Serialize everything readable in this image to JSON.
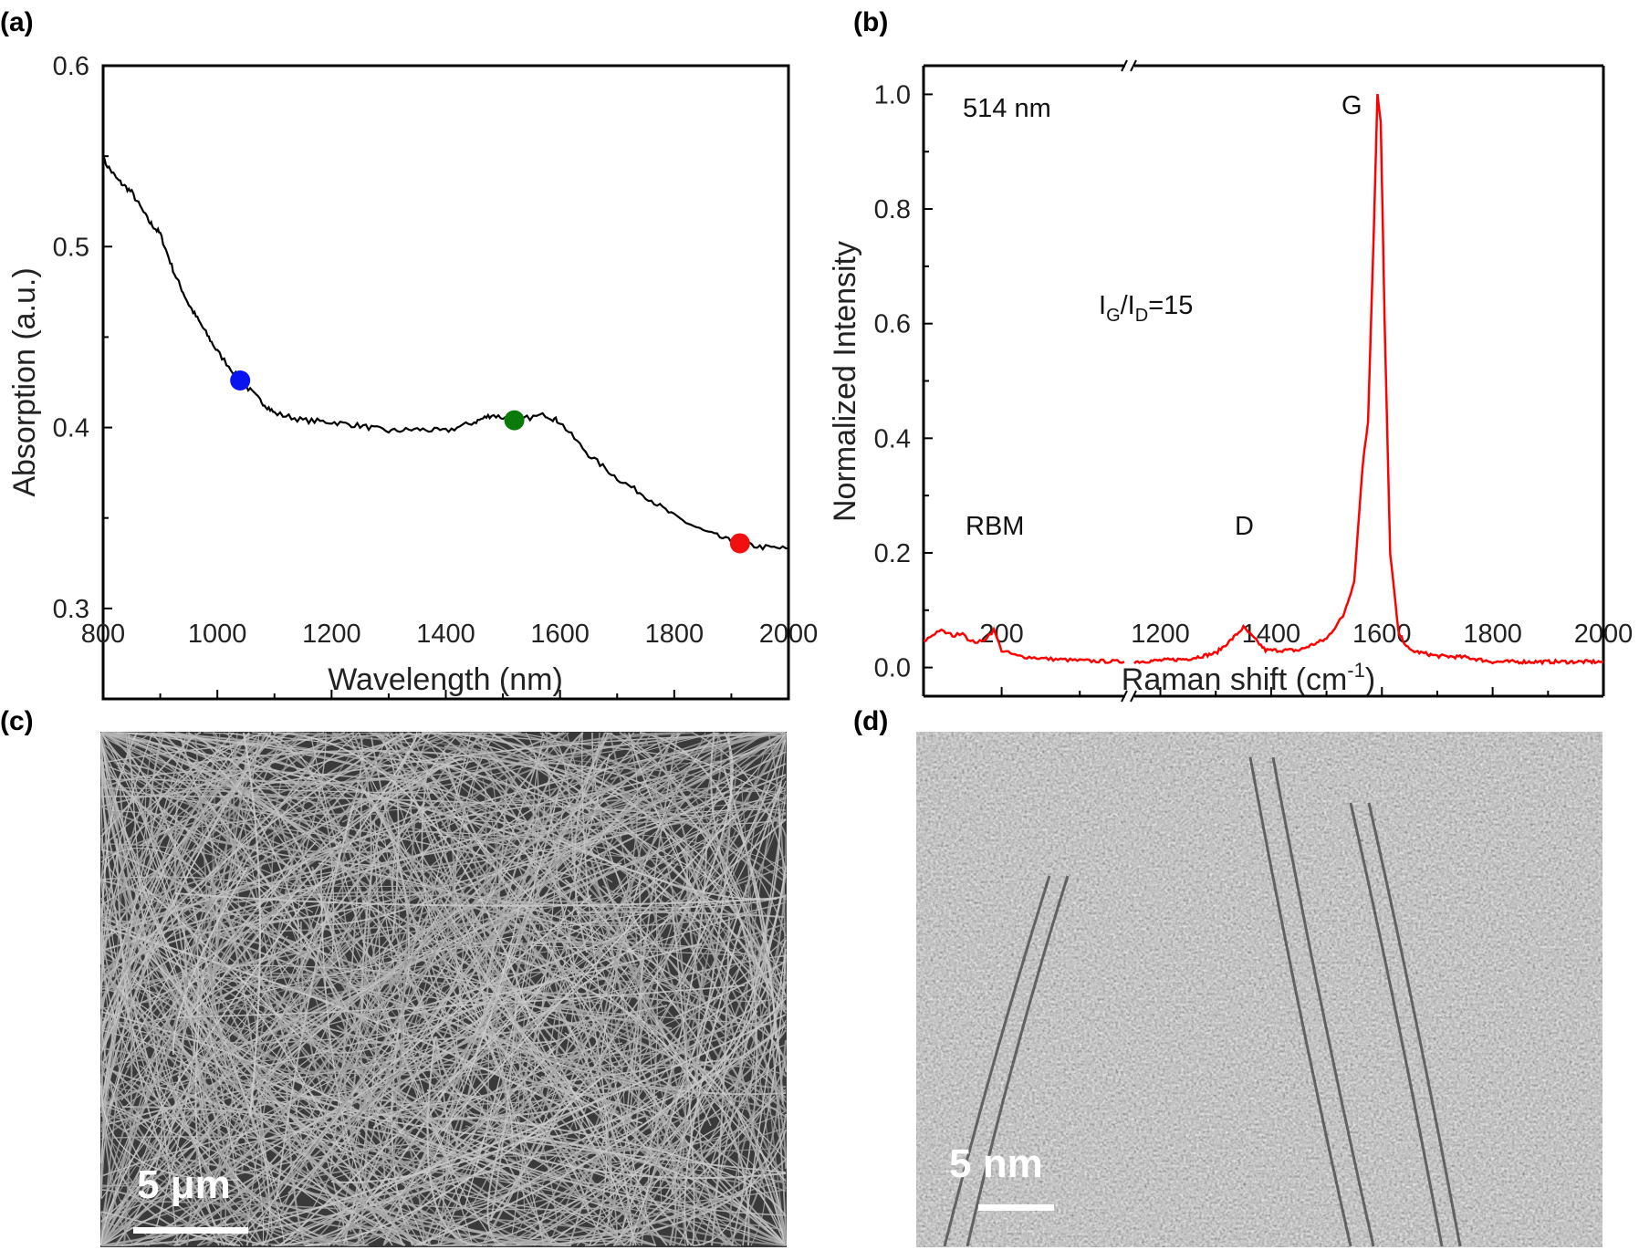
{
  "panels": {
    "a": "(a)",
    "b": "(b)",
    "c": "(c)",
    "d": "(d)"
  },
  "chart_data": [
    {
      "type": "line",
      "panel": "(a)",
      "xlabel": "Wavelength (nm)",
      "ylabel": "Absorption (a.u.)",
      "xlim": [
        800,
        2000
      ],
      "ylim": [
        0.25,
        0.6
      ],
      "xticks": [
        800,
        1000,
        1200,
        1400,
        1600,
        1800,
        2000
      ],
      "yticks": [
        0.3,
        0.4,
        0.5,
        0.6
      ],
      "ytick_labels": [
        "0.3",
        "0.4",
        "0.5",
        "0.6"
      ],
      "line_color": "#000000",
      "x": [
        800,
        825,
        850,
        880,
        900,
        925,
        950,
        975,
        1000,
        1040,
        1075,
        1100,
        1150,
        1200,
        1250,
        1300,
        1350,
        1400,
        1450,
        1480,
        1520,
        1575,
        1600,
        1650,
        1700,
        1750,
        1800,
        1850,
        1900,
        1950,
        2000
      ],
      "y": [
        0.548,
        0.537,
        0.53,
        0.514,
        0.507,
        0.485,
        0.468,
        0.455,
        0.442,
        0.426,
        0.415,
        0.408,
        0.404,
        0.403,
        0.401,
        0.398,
        0.399,
        0.398,
        0.403,
        0.407,
        0.404,
        0.407,
        0.403,
        0.385,
        0.372,
        0.362,
        0.351,
        0.343,
        0.337,
        0.334,
        0.333
      ],
      "markers": [
        {
          "x": 1040,
          "y": 0.426,
          "color": "#0a14f0"
        },
        {
          "x": 1520,
          "y": 0.404,
          "color": "#0a7a0a"
        },
        {
          "x": 1915,
          "y": 0.336,
          "color": "#f01010"
        }
      ]
    },
    {
      "type": "line",
      "panel": "(b)",
      "xlabel": "Raman shift (cm",
      "xlabel_sup": "-1",
      "xlabel_end": ")",
      "ylabel": "Normalized Intensity",
      "broken_x_axis": true,
      "xlim_segments": [
        [
          100,
          357
        ],
        [
          1153,
          2000
        ]
      ],
      "ylim": [
        -0.05,
        1.05
      ],
      "xticks": [
        200,
        1200,
        1400,
        1600,
        1800,
        2000
      ],
      "yticks": [
        0.0,
        0.2,
        0.4,
        0.6,
        0.8,
        1.0
      ],
      "ytick_labels": [
        "0.0",
        "0.2",
        "0.4",
        "0.6",
        "0.8",
        "1.0"
      ],
      "line_color": "#ff0000",
      "segments": [
        {
          "x": [
            100,
            120,
            140,
            150,
            160,
            175,
            190,
            200,
            220,
            260,
            300,
            357
          ],
          "y": [
            0.045,
            0.065,
            0.055,
            0.062,
            0.045,
            0.045,
            0.065,
            0.03,
            0.02,
            0.015,
            0.012,
            0.01
          ]
        },
        {
          "x": [
            1153,
            1250,
            1300,
            1330,
            1350,
            1370,
            1390,
            1450,
            1500,
            1530,
            1550,
            1565,
            1575,
            1585,
            1592,
            1598,
            1605,
            1615,
            1630,
            1650,
            1700,
            1750,
            1800,
            2000
          ],
          "y": [
            0.01,
            0.015,
            0.025,
            0.05,
            0.07,
            0.05,
            0.03,
            0.03,
            0.05,
            0.09,
            0.15,
            0.35,
            0.43,
            0.75,
            1.0,
            0.95,
            0.6,
            0.2,
            0.06,
            0.03,
            0.02,
            0.018,
            0.01,
            0.01
          ]
        }
      ],
      "annotations": {
        "laser": "514 nm",
        "ratio_I": "I",
        "ratio_G": "G",
        "ratio_slash": "/I",
        "ratio_D": "D",
        "ratio_value": "=15",
        "rbm": "RBM",
        "d_peak": "D",
        "g_peak": "G"
      }
    }
  ],
  "images": {
    "c": {
      "scale_bar": "5 μm"
    },
    "d": {
      "scale_bar": "5 nm"
    }
  }
}
